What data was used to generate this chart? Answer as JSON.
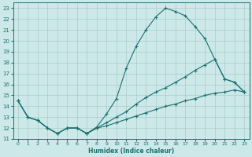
{
  "xlabel": "Humidex (Indice chaleur)",
  "bg_color": "#cce8e8",
  "grid_color": "#aacccc",
  "line_color": "#1a7070",
  "xlim": [
    -0.5,
    23.5
  ],
  "ylim": [
    11,
    23.5
  ],
  "yticks": [
    11,
    12,
    13,
    14,
    15,
    16,
    17,
    18,
    19,
    20,
    21,
    22,
    23
  ],
  "xticks": [
    0,
    1,
    2,
    3,
    4,
    5,
    6,
    7,
    8,
    9,
    10,
    11,
    12,
    13,
    14,
    15,
    16,
    17,
    18,
    19,
    20,
    21,
    22,
    23
  ],
  "curve1_x": [
    0,
    1,
    2,
    3,
    4,
    5,
    6,
    7,
    8,
    9,
    10,
    11,
    12,
    13,
    14,
    15,
    16,
    17,
    18,
    19,
    20,
    21,
    22,
    23
  ],
  "curve1_y": [
    14.5,
    13.0,
    12.7,
    12.0,
    11.5,
    12.0,
    12.0,
    11.5,
    12.1,
    13.3,
    14.7,
    17.5,
    19.5,
    21.0,
    22.2,
    23.0,
    22.7,
    22.3,
    21.3,
    20.2,
    18.3,
    16.5,
    16.2,
    15.3
  ],
  "curve2_x": [
    0,
    1,
    2,
    3,
    4,
    5,
    6,
    7,
    8,
    9,
    10,
    11,
    12,
    13,
    14,
    15,
    16,
    17,
    18,
    19,
    20,
    21,
    22,
    23
  ],
  "curve2_y": [
    14.5,
    13.0,
    12.7,
    12.0,
    11.5,
    12.0,
    12.0,
    11.5,
    12.0,
    12.5,
    13.0,
    13.5,
    14.2,
    14.8,
    15.3,
    15.7,
    16.2,
    16.7,
    17.3,
    17.8,
    18.3,
    16.5,
    16.2,
    15.3
  ],
  "curve3_x": [
    0,
    1,
    2,
    3,
    4,
    5,
    6,
    7,
    8,
    9,
    10,
    11,
    12,
    13,
    14,
    15,
    16,
    17,
    18,
    19,
    20,
    21,
    22,
    23
  ],
  "curve3_y": [
    14.5,
    13.0,
    12.7,
    12.0,
    11.5,
    12.0,
    12.0,
    11.5,
    12.0,
    12.2,
    12.5,
    12.8,
    13.1,
    13.4,
    13.7,
    14.0,
    14.2,
    14.5,
    14.7,
    15.0,
    15.2,
    15.3,
    15.5,
    15.3
  ]
}
